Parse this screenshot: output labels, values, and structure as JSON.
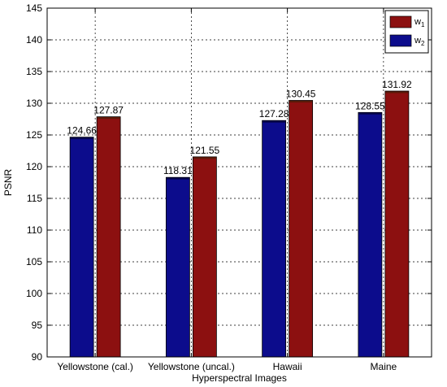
{
  "chart_data": {
    "type": "bar",
    "title": "",
    "xlabel": "Hyperspectral Images",
    "ylabel": "PSNR",
    "ylim": [
      90,
      145
    ],
    "yticks": [
      90,
      95,
      100,
      105,
      110,
      115,
      120,
      125,
      130,
      135,
      140,
      145
    ],
    "grid": true,
    "legend_position": "top-right",
    "categories": [
      "Yellowstone (cal.)",
      "Yellowstone (uncal.)",
      "Hawaii",
      "Maine"
    ],
    "series": [
      {
        "name": "w2",
        "name_base": "w",
        "name_sub": "2",
        "color": "#0c0c8c",
        "values": [
          124.66,
          118.31,
          127.28,
          128.55
        ],
        "labels": [
          "124.66",
          "118.31",
          "127.28",
          "128.55"
        ]
      },
      {
        "name": "w1",
        "name_base": "w",
        "name_sub": "1",
        "color": "#8c1010",
        "values": [
          127.87,
          121.55,
          130.45,
          131.92
        ],
        "labels": [
          "127.87",
          "121.55",
          "130.45",
          "131.92"
        ]
      }
    ],
    "legend_order": [
      1,
      0
    ]
  }
}
